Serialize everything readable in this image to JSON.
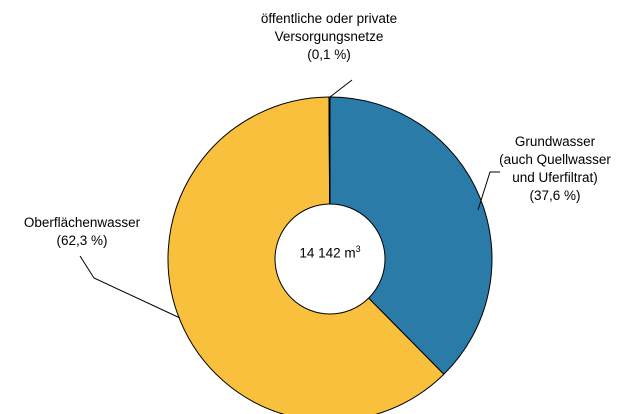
{
  "chart_data": {
    "type": "pie",
    "title": "",
    "categories": [
      "Grundwasser (auch Quellwasser und Uferfiltrat)",
      "Oberflächenwasser",
      "öffentliche oder private Versorgungsnetze"
    ],
    "values": [
      37.6,
      62.3,
      0.1
    ],
    "unit": "%",
    "colors": [
      "#2b7ba8",
      "#f9c03e",
      "#2b7ba8"
    ],
    "center_label": {
      "value": "14 142 m",
      "sup": "3"
    },
    "labels": {
      "top": [
        "öffentliche oder private",
        "Versorgungsnetze",
        "(0,1 %)"
      ],
      "right": [
        "Grundwasser",
        "(auch Quellwasser",
        "und Uferfiltrat)",
        "(37,6 %)"
      ],
      "left": [
        "Oberflächenwasser",
        "(62,3 %)"
      ]
    }
  }
}
